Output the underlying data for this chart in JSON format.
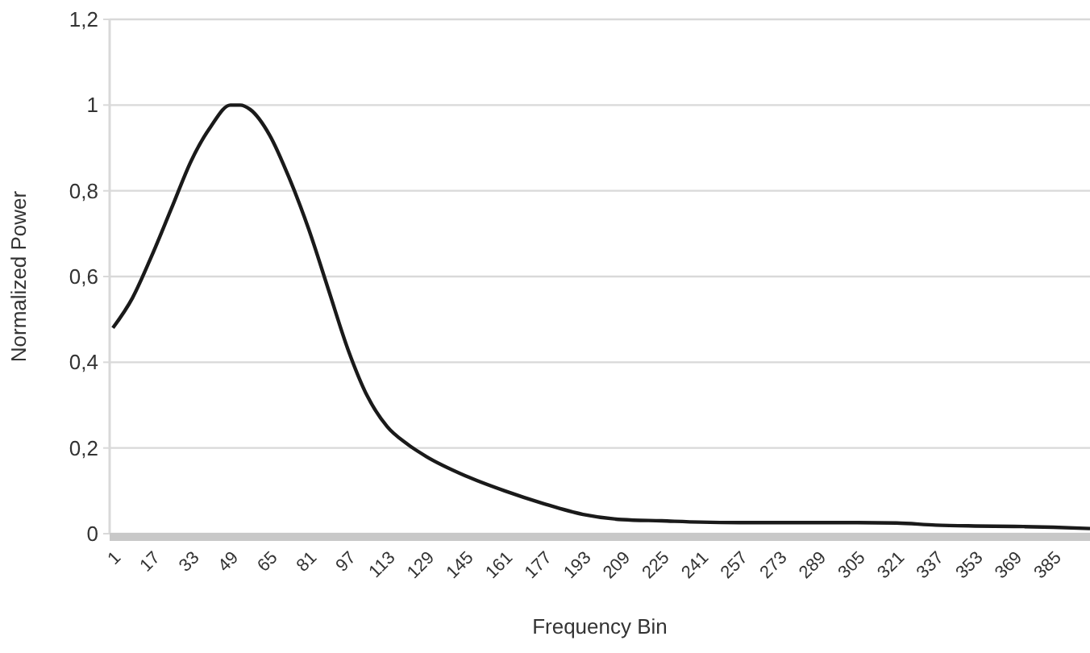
{
  "chart_data": {
    "type": "line",
    "xlabel": "Frequency Bin",
    "ylabel": "Normalized Power",
    "x": [
      1,
      9,
      17,
      25,
      33,
      41,
      49,
      53,
      57,
      65,
      73,
      81,
      89,
      97,
      105,
      113,
      121,
      129,
      145,
      161,
      177,
      193,
      209,
      225,
      241,
      257,
      273,
      289,
      305,
      321,
      337,
      353,
      369,
      385,
      400
    ],
    "series": [
      {
        "color": "#1a1a1a",
        "values": [
          0.48,
          0.55,
          0.65,
          0.76,
          0.87,
          0.95,
          1.0,
          1.0,
          0.99,
          0.93,
          0.83,
          0.71,
          0.57,
          0.43,
          0.32,
          0.25,
          0.21,
          0.18,
          0.135,
          0.1,
          0.07,
          0.045,
          0.033,
          0.03,
          0.027,
          0.026,
          0.026,
          0.026,
          0.026,
          0.025,
          0.02,
          0.018,
          0.017,
          0.015,
          0.012
        ]
      }
    ],
    "xlim": [
      1,
      400
    ],
    "xticks": [
      1,
      17,
      33,
      49,
      65,
      81,
      97,
      113,
      129,
      145,
      161,
      177,
      193,
      209,
      225,
      241,
      257,
      273,
      289,
      305,
      321,
      337,
      353,
      369,
      385
    ],
    "ylim": [
      0,
      1.2
    ],
    "yticks": [
      {
        "value": 0,
        "label": "0"
      },
      {
        "value": 0.2,
        "label": "0,2"
      },
      {
        "value": 0.4,
        "label": "0,4"
      },
      {
        "value": 0.6,
        "label": "0,6"
      },
      {
        "value": 0.8,
        "label": "0,8"
      },
      {
        "value": 1,
        "label": "1"
      },
      {
        "value": 1.2,
        "label": "1,2"
      }
    ],
    "grid": "y",
    "marker": "none",
    "line_style": "solid"
  }
}
